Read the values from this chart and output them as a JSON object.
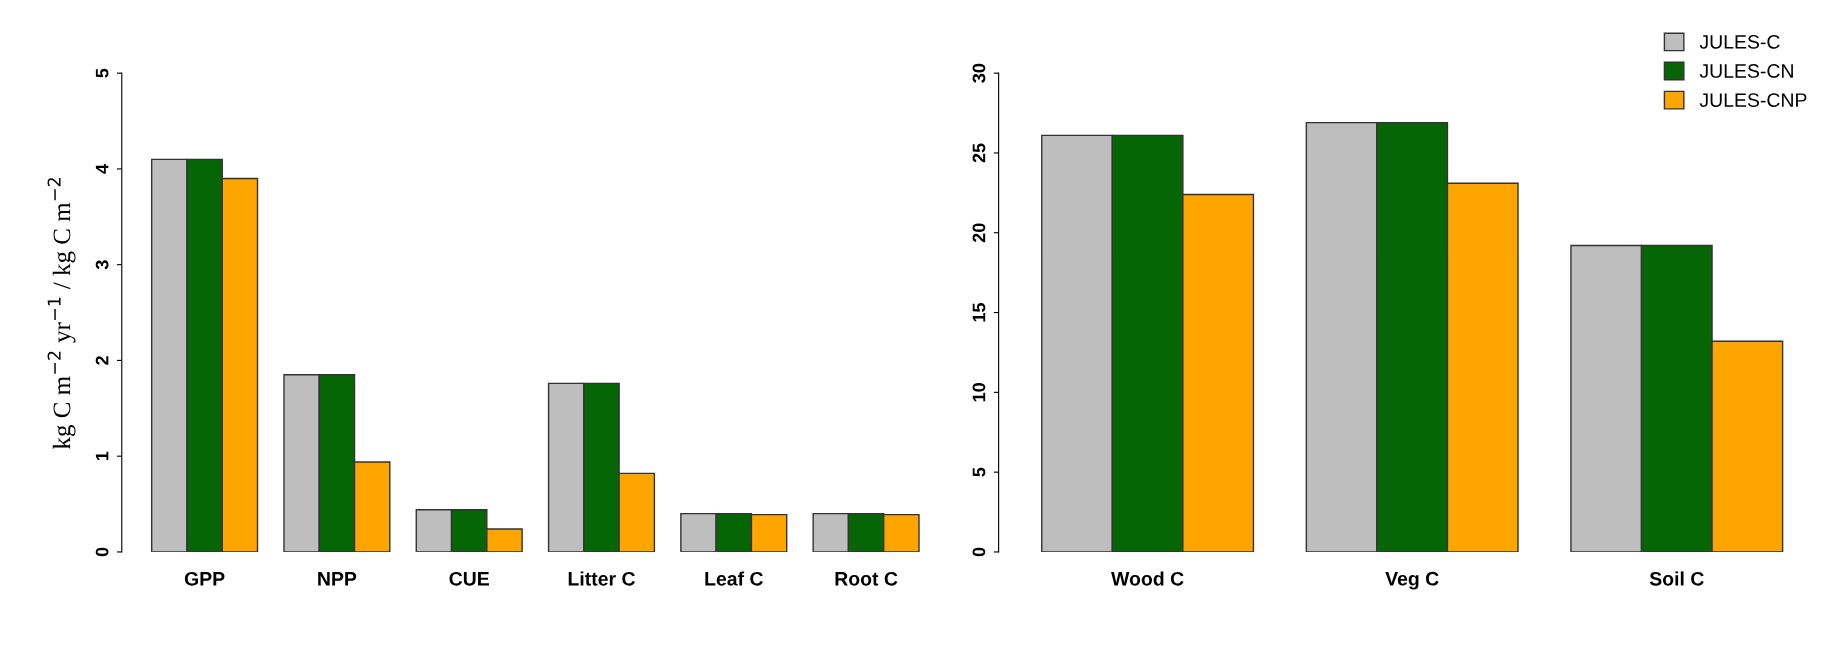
{
  "chart_data": [
    {
      "type": "bar",
      "ylabel": "kg C m$^{−2}$ yr$^{−1}$ / kg C m$^{−2}$",
      "categories": [
        "GPP",
        "NPP",
        "CUE",
        "Litter C",
        "Leaf C",
        "Root C"
      ],
      "series": [
        {
          "color": "#bebebe",
          "values": [
            4.1,
            1.85,
            0.44,
            1.76,
            0.4,
            0.4
          ]
        },
        {
          "color": "#066606",
          "values": [
            4.1,
            1.85,
            0.44,
            1.76,
            0.4,
            0.4
          ]
        },
        {
          "color": "#ffa500",
          "values": [
            3.9,
            0.94,
            0.24,
            0.82,
            0.39,
            0.39
          ]
        }
      ],
      "ylim": [
        0,
        5
      ],
      "yticks": [
        0,
        1,
        2,
        3,
        4,
        5
      ],
      "grid": false,
      "legend": false
    },
    {
      "type": "bar",
      "categories": [
        "Wood C",
        "Veg C",
        "Soil C"
      ],
      "series": [
        {
          "name": "JULES-C",
          "color": "#bebebe",
          "values": [
            26.1,
            26.9,
            19.2
          ]
        },
        {
          "name": "JULES-CN",
          "color": "#066606",
          "values": [
            26.1,
            26.9,
            19.2
          ]
        },
        {
          "name": "JULES-CNP",
          "color": "#ffa500",
          "values": [
            22.4,
            23.1,
            13.2
          ]
        }
      ],
      "ylim": [
        0,
        30
      ],
      "yticks": [
        0,
        5,
        10,
        15,
        20,
        25,
        30
      ],
      "grid": false,
      "legend": "top right"
    }
  ]
}
